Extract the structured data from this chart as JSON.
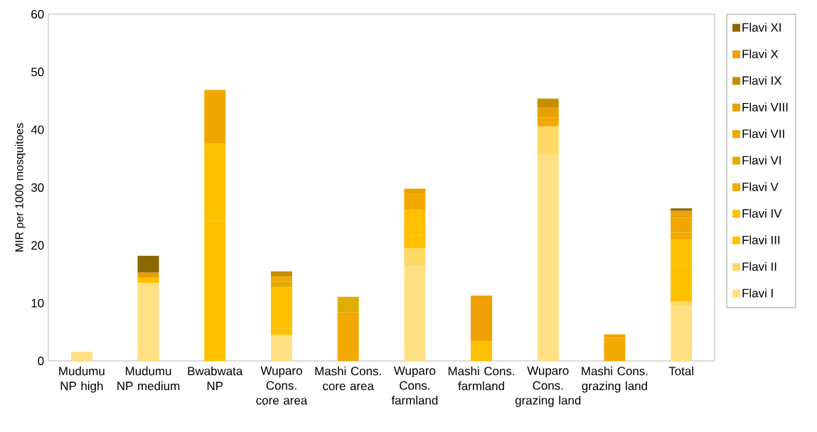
{
  "chart_data": {
    "type": "bar",
    "stacked": true,
    "ylabel": "MIR per 1000 mosquitoes",
    "categories": [
      "Mudumu NP high",
      "Mudumu NP medium",
      "Bwabwata NP",
      "Wuparo Cons. core area",
      "Mashi Cons. core area",
      "Wuparo Cons. farmland",
      "Mashi Cons. farmland",
      "Wuparo Cons. grazing land",
      "Mashi Cons. grazing land",
      "Total"
    ],
    "ylim": [
      0,
      60
    ],
    "yticks": [
      0,
      10,
      20,
      30,
      40,
      50,
      60
    ],
    "grid": false,
    "legend": "right",
    "series": [
      {
        "name": "Flavi I",
        "color": "#ffe083",
        "values": [
          1.6,
          13.5,
          null,
          4.5,
          null,
          16.4,
          null,
          35.7,
          null,
          9.4
        ]
      },
      {
        "name": "Flavi II",
        "color": "#ffd966",
        "values": [
          null,
          null,
          null,
          null,
          null,
          3.1,
          null,
          4.9,
          null,
          0.9
        ]
      },
      {
        "name": "Flavi III",
        "color": "#ffc000",
        "values": [
          null,
          null,
          24.3,
          1.1,
          null,
          2.3,
          3.4,
          null,
          null,
          6.2
        ]
      },
      {
        "name": "Flavi IV",
        "color": "#ffc000",
        "values": [
          null,
          0.9,
          13.3,
          7.2,
          null,
          4.3,
          null,
          null,
          null,
          4.5
        ]
      },
      {
        "name": "Flavi V",
        "color": "#f2a900",
        "values": [
          null,
          null,
          null,
          null,
          8.4,
          2.9,
          null,
          0.6,
          4.0,
          1.2
        ]
      },
      {
        "name": "Flavi VI",
        "color": "#e0ac00",
        "values": [
          null,
          null,
          null,
          0.9,
          2.7,
          null,
          null,
          null,
          null,
          null
        ]
      },
      {
        "name": "Flavi VII",
        "color": "#f0a800",
        "values": [
          null,
          null,
          9.3,
          0.9,
          null,
          null,
          null,
          0.9,
          null,
          2.6
        ]
      },
      {
        "name": "Flavi VIII",
        "color": "#e8a000",
        "values": [
          null,
          0.9,
          null,
          null,
          null,
          0.8,
          null,
          1.7,
          null,
          0.5
        ]
      },
      {
        "name": "Flavi IX",
        "color": "#c49000",
        "values": [
          null,
          null,
          null,
          0.9,
          null,
          null,
          null,
          1.6,
          null,
          null
        ]
      },
      {
        "name": "Flavi X",
        "color": "#f0a000",
        "values": [
          null,
          null,
          null,
          null,
          null,
          null,
          7.9,
          null,
          0.6,
          0.7
        ]
      },
      {
        "name": "Flavi XI",
        "color": "#8c6800",
        "values": [
          null,
          2.9,
          null,
          null,
          null,
          null,
          null,
          null,
          null,
          0.4
        ]
      }
    ]
  }
}
